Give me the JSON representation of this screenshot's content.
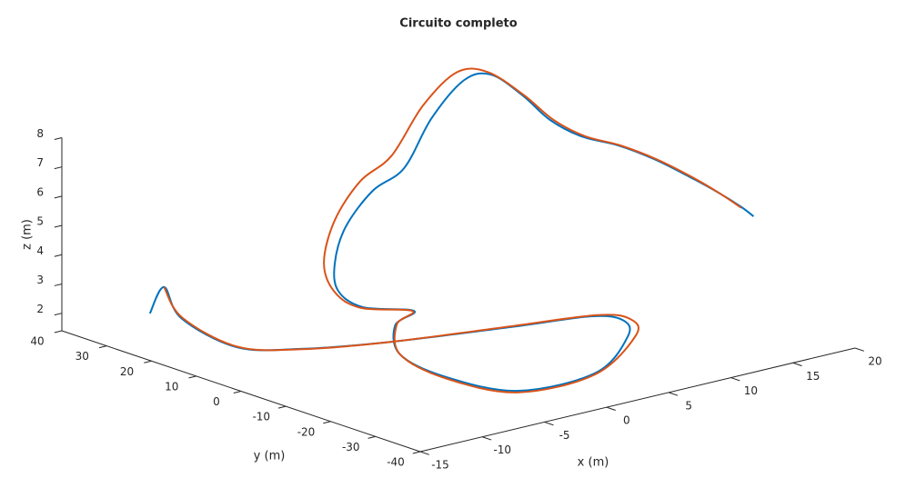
{
  "chart_data": {
    "type": "line3d",
    "title": "Circuito completo",
    "xlabel": "x (m)",
    "ylabel": "y (m)",
    "zlabel": "z (m)",
    "xlim": [
      -15,
      20
    ],
    "ylim": [
      -40,
      40
    ],
    "zlim": [
      1.4,
      8
    ],
    "xticks": [
      -15,
      -10,
      -5,
      0,
      5,
      10,
      15,
      20
    ],
    "yticks": [
      -40,
      -30,
      -20,
      -10,
      0,
      10,
      20,
      30,
      40
    ],
    "zticks": [
      2,
      3,
      4,
      5,
      6,
      7,
      8
    ],
    "series": [
      {
        "color": "#0072bd",
        "x": [
          -11.7,
          -10.2,
          -12.1,
          -11.5,
          -8.3,
          -3.5,
          4.2,
          9.5,
          10.5,
          8.5,
          1.9,
          -4.3,
          -5.8,
          -4.8,
          -1.8,
          -0.1,
          -2.0,
          -1.3,
          -0.1,
          2.2,
          4.5,
          7.1,
          11.3,
          14.9,
          15.7,
          15.1,
          14.6,
          14.6,
          16.3,
          17.3,
          18.1,
          18.5,
          18.8,
          18.9
        ],
        "y": [
          29.5,
          30.5,
          21.4,
          10.7,
          5.2,
          -1.5,
          -6.8,
          -10.1,
          -14.5,
          -21.2,
          -32.4,
          -32.3,
          -20.3,
          -7.2,
          2.2,
          2.7,
          8.8,
          16.3,
          20.4,
          24.4,
          24.7,
          24.9,
          30.4,
          33.1,
          29.3,
          20.6,
          13.1,
          6.0,
          2.6,
          -2.7,
          -8.6,
          -13.7,
          -18.0,
          -20.4
        ],
        "z": [
          2.2,
          2.9,
          2.5,
          2.0,
          1.9,
          2.0,
          2.0,
          2.0,
          2.0,
          2.0,
          2.0,
          2.0,
          2.0,
          2.0,
          2.2,
          2.5,
          2.5,
          2.6,
          3.2,
          4.0,
          5.0,
          5.5,
          6.5,
          7.3,
          7.6,
          7.4,
          7.0,
          6.8,
          6.5,
          6.2,
          5.8,
          5.5,
          5.2,
          5.0
        ]
      },
      {
        "color": "#d95319",
        "x": [
          -10.2,
          -12.0,
          -11.4,
          -8.3,
          -3.5,
          4.4,
          10.0,
          11.0,
          9.0,
          1.6,
          -4.6,
          -6.0,
          -4.8,
          -1.6,
          -0.2,
          -2.2,
          -1.6,
          -0.9,
          1.4,
          3.6,
          6.2,
          10.6,
          14.4,
          15.5,
          15.2,
          14.8,
          14.8,
          16.4,
          17.4,
          18.2,
          18.5,
          18.7
        ],
        "y": [
          30.5,
          21.4,
          10.8,
          5.0,
          -1.5,
          -6.6,
          -10.2,
          -14.8,
          -21.6,
          -33.0,
          -32.8,
          -20.6,
          -7.2,
          2.4,
          2.8,
          8.8,
          16.3,
          20.6,
          24.6,
          25.0,
          25.2,
          30.4,
          33.4,
          29.5,
          20.6,
          13.0,
          5.9,
          2.5,
          -2.8,
          -8.7,
          -13.8,
          -18.2
        ],
        "z": [
          2.9,
          2.5,
          2.0,
          1.9,
          2.0,
          2.0,
          2.0,
          2.0,
          2.0,
          2.0,
          2.0,
          2.0,
          2.0,
          2.2,
          2.5,
          2.5,
          2.6,
          3.3,
          4.3,
          5.4,
          6.0,
          7.0,
          7.6,
          7.7,
          7.4,
          7.0,
          6.8,
          6.5,
          6.2,
          5.8,
          5.5,
          5.2
        ]
      }
    ]
  }
}
